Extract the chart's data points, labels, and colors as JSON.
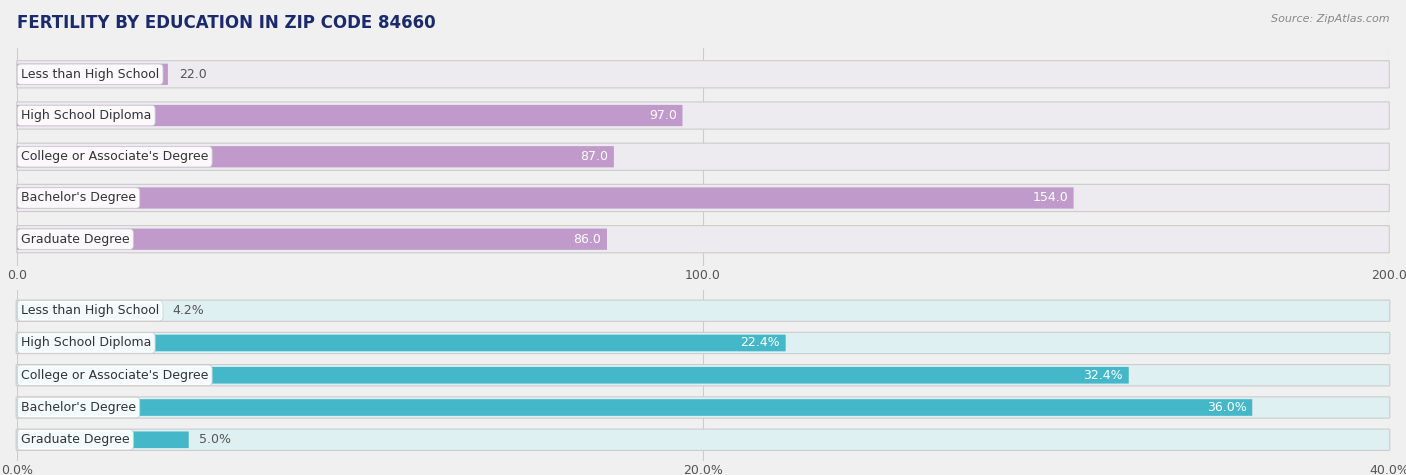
{
  "title": "FERTILITY BY EDUCATION IN ZIP CODE 84660",
  "source": "Source: ZipAtlas.com",
  "top_chart": {
    "categories": [
      "Less than High School",
      "High School Diploma",
      "College or Associate's Degree",
      "Bachelor's Degree",
      "Graduate Degree"
    ],
    "values": [
      22.0,
      97.0,
      87.0,
      154.0,
      86.0
    ],
    "bar_color": "#c09aca",
    "bar_bg_color": "#eeebf0",
    "xlim": [
      0,
      200
    ],
    "xticks": [
      0.0,
      100.0,
      200.0
    ],
    "xtick_labels": [
      "0.0",
      "100.0",
      "200.0"
    ]
  },
  "bottom_chart": {
    "categories": [
      "Less than High School",
      "High School Diploma",
      "College or Associate's Degree",
      "Bachelor's Degree",
      "Graduate Degree"
    ],
    "values": [
      4.2,
      22.4,
      32.4,
      36.0,
      5.0
    ],
    "bar_color": "#44b8c8",
    "bar_bg_color": "#dff0f3",
    "xlim": [
      0,
      40
    ],
    "xticks": [
      0.0,
      20.0,
      40.0
    ],
    "xtick_labels": [
      "0.0%",
      "20.0%",
      "40.0%"
    ]
  },
  "label_font_size": 9,
  "value_font_size": 9,
  "title_font_size": 12,
  "bar_height": 0.62,
  "label_color": "#444444",
  "title_color": "#1a2a6b",
  "bg_color": "#f0f0f0",
  "grid_color": "#cccccc",
  "source_color": "#888888"
}
